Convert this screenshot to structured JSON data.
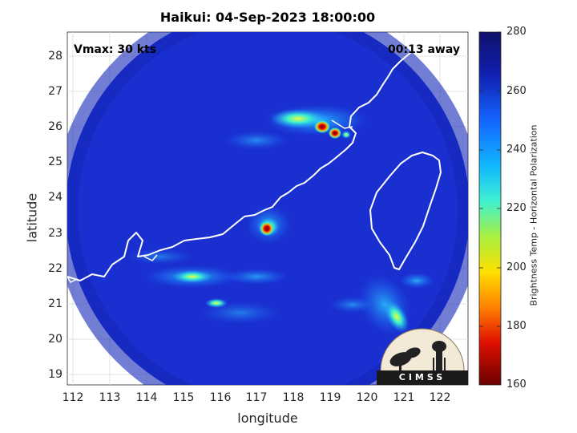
{
  "title": "Haikui: 04-Sep-2023 18:00:00",
  "overlay": {
    "vmax": "Vmax: 30 kts",
    "away": "00:13 away"
  },
  "axes": {
    "xlabel": "longitude",
    "ylabel": "latitude",
    "xlim": [
      111.8,
      122.7
    ],
    "ylim": [
      18.7,
      28.7
    ],
    "xticks": [
      "112",
      "113",
      "114",
      "115",
      "116",
      "117",
      "118",
      "119",
      "120",
      "121",
      "122"
    ],
    "yticks": [
      "19",
      "20",
      "21",
      "22",
      "23",
      "24",
      "25",
      "26",
      "27",
      "28"
    ]
  },
  "colorbar": {
    "label": "Brightness Temp - Horizontal Polarization",
    "ticks": [
      "280",
      "260",
      "240",
      "220",
      "200",
      "180",
      "160"
    ],
    "range": [
      160,
      280
    ]
  },
  "logo": {
    "text": "CIMSS"
  },
  "colors": {
    "background_field": "#1a2fd0",
    "coastline": "#ffffff"
  }
}
